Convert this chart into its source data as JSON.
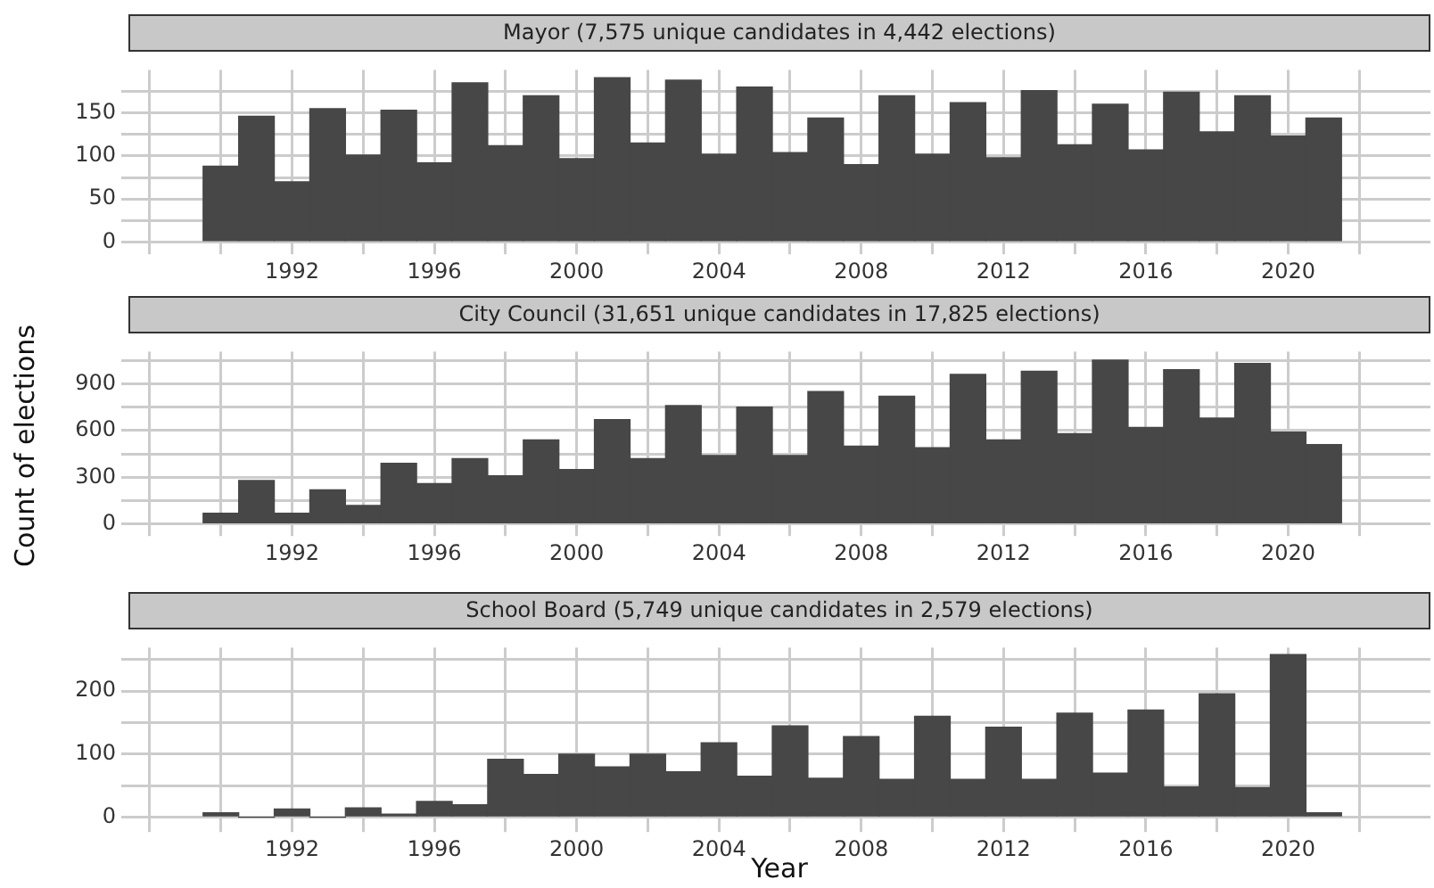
{
  "chart_data": [
    {
      "type": "histogram",
      "title": "Mayor (7,575 unique candidates in 4,442 elections)",
      "color": "#474747",
      "grid": true,
      "bins": [
        1989.5,
        1990.5,
        1991.5,
        1992.5,
        1993.5,
        1994.5,
        1995.5,
        1996.5,
        1997.5,
        1998.5,
        1999.5,
        2000.5,
        2001.5,
        2002.5,
        2003.5,
        2004.5,
        2005.5,
        2006.5,
        2007.5,
        2008.5,
        2009.5,
        2010.5,
        2011.5,
        2012.5,
        2013.5,
        2014.5,
        2015.5,
        2016.5,
        2017.5,
        2018.5,
        2019.5,
        2020.5,
        2021.5
      ],
      "values": [
        88,
        146,
        70,
        155,
        101,
        153,
        92,
        185,
        112,
        170,
        97,
        191,
        115,
        188,
        102,
        180,
        104,
        144,
        90,
        170,
        102,
        162,
        98,
        176,
        113,
        160,
        107,
        174,
        128,
        170,
        123,
        144
      ],
      "xlim": [
        1987.4,
        2024
      ],
      "xticks": [
        {
          "value": 1988,
          "label": null
        },
        {
          "value": 1990,
          "label": null
        },
        1992,
        {
          "value": 1994,
          "label": null
        },
        1996,
        {
          "value": 1998,
          "label": null
        },
        2000,
        {
          "value": 2002,
          "label": null
        },
        2004,
        {
          "value": 2006,
          "label": null
        },
        2008,
        {
          "value": 2010,
          "label": null
        },
        2012,
        {
          "value": 2014,
          "label": null
        },
        2016,
        {
          "value": 2018,
          "label": null
        },
        2020,
        {
          "value": 2022,
          "label": null
        }
      ],
      "ylim": [
        -6,
        200
      ],
      "yticks": [
        0,
        {
          "value": 25,
          "label": null
        },
        50,
        {
          "value": 75,
          "label": null
        },
        100,
        {
          "value": 125,
          "label": null
        },
        150,
        {
          "value": 175,
          "label": null
        }
      ]
    },
    {
      "type": "histogram",
      "title": "City Council (31,651 unique candidates in 17,825 elections)",
      "ylabel": "Count of elections",
      "color": "#474747",
      "grid": true,
      "bins": [
        1989.5,
        1990.5,
        1991.5,
        1992.5,
        1993.5,
        1994.5,
        1995.5,
        1996.5,
        1997.5,
        1998.5,
        1999.5,
        2000.5,
        2001.5,
        2002.5,
        2003.5,
        2004.5,
        2005.5,
        2006.5,
        2007.5,
        2008.5,
        2009.5,
        2010.5,
        2011.5,
        2012.5,
        2013.5,
        2014.5,
        2015.5,
        2016.5,
        2017.5,
        2018.5,
        2019.5,
        2020.5,
        2021.5
      ],
      "values": [
        70,
        280,
        70,
        220,
        120,
        390,
        260,
        420,
        310,
        540,
        350,
        670,
        420,
        760,
        440,
        750,
        440,
        850,
        500,
        820,
        490,
        960,
        540,
        980,
        580,
        1050,
        620,
        990,
        680,
        1030,
        590,
        510
      ],
      "xlim": [
        1987.4,
        2024
      ],
      "xticks": [
        {
          "value": 1988,
          "label": null
        },
        {
          "value": 1990,
          "label": null
        },
        1992,
        {
          "value": 1994,
          "label": null
        },
        1996,
        {
          "value": 1998,
          "label": null
        },
        2000,
        {
          "value": 2002,
          "label": null
        },
        2004,
        {
          "value": 2006,
          "label": null
        },
        2008,
        {
          "value": 2010,
          "label": null
        },
        2012,
        {
          "value": 2014,
          "label": null
        },
        2016,
        {
          "value": 2018,
          "label": null
        },
        2020,
        {
          "value": 2022,
          "label": null
        }
      ],
      "ylim": [
        -30,
        1105
      ],
      "yticks": [
        0,
        {
          "value": 150,
          "label": null
        },
        300,
        {
          "value": 450,
          "label": null
        },
        600,
        {
          "value": 750,
          "label": null
        },
        900,
        {
          "value": 1050,
          "label": null
        }
      ]
    },
    {
      "type": "histogram",
      "title": "School Board (5,749 unique candidates in 2,579 elections)",
      "xlabel": "Year",
      "color": "#474747",
      "grid": true,
      "bins": [
        1989.5,
        1990.5,
        1991.5,
        1992.5,
        1993.5,
        1994.5,
        1995.5,
        1996.5,
        1997.5,
        1998.5,
        1999.5,
        2000.5,
        2001.5,
        2002.5,
        2003.5,
        2004.5,
        2005.5,
        2006.5,
        2007.5,
        2008.5,
        2009.5,
        2010.5,
        2011.5,
        2012.5,
        2013.5,
        2014.5,
        2015.5,
        2016.5,
        2017.5,
        2018.5,
        2019.5,
        2020.5,
        2021.5
      ],
      "values": [
        7,
        0,
        13,
        0,
        15,
        5,
        25,
        20,
        92,
        68,
        100,
        80,
        100,
        72,
        118,
        65,
        145,
        62,
        128,
        60,
        160,
        60,
        143,
        60,
        165,
        70,
        170,
        48,
        196,
        47,
        258,
        7
      ],
      "xlim": [
        1987.4,
        2024
      ],
      "xticks": [
        {
          "value": 1988,
          "label": null
        },
        {
          "value": 1990,
          "label": null
        },
        1992,
        {
          "value": 1994,
          "label": null
        },
        1996,
        {
          "value": 1998,
          "label": null
        },
        2000,
        {
          "value": 2002,
          "label": null
        },
        2004,
        {
          "value": 2006,
          "label": null
        },
        2008,
        {
          "value": 2010,
          "label": null
        },
        2012,
        {
          "value": 2014,
          "label": null
        },
        2016,
        {
          "value": 2018,
          "label": null
        },
        2020,
        {
          "value": 2022,
          "label": null
        }
      ],
      "ylim": [
        -12,
        269
      ],
      "yticks": [
        0,
        {
          "value": 50,
          "label": null
        },
        100,
        {
          "value": 150,
          "label": null
        },
        200,
        {
          "value": 250,
          "label": null
        }
      ]
    }
  ]
}
